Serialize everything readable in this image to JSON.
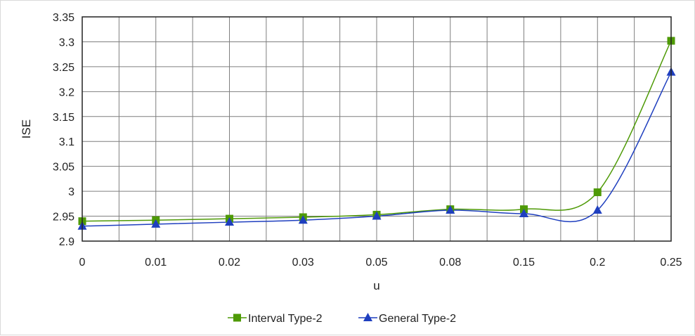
{
  "chart_data": {
    "type": "line",
    "categories": [
      "0",
      "0.01",
      "0.02",
      "0.03",
      "0.05",
      "0.08",
      "0.15",
      "0.2",
      "0.25"
    ],
    "xlabel": "u",
    "ylabel": "ISE",
    "ylim": [
      2.9,
      3.35
    ],
    "yticks": [
      "2.9",
      "2.95",
      "3",
      "3.05",
      "3.1",
      "3.15",
      "3.2",
      "3.25",
      "3.3",
      "3.35"
    ],
    "grid": true,
    "legend_position": "bottom",
    "series": [
      {
        "name": "Interval Type-2",
        "color": "#4e9a06",
        "marker": "square",
        "values": [
          2.94,
          2.942,
          2.945,
          2.948,
          2.953,
          2.964,
          2.964,
          2.998,
          3.302
        ]
      },
      {
        "name": "General Type-2",
        "color": "#1f3fbf",
        "marker": "triangle",
        "values": [
          2.93,
          2.934,
          2.938,
          2.942,
          2.95,
          2.962,
          2.955,
          2.962,
          3.239
        ]
      }
    ]
  }
}
